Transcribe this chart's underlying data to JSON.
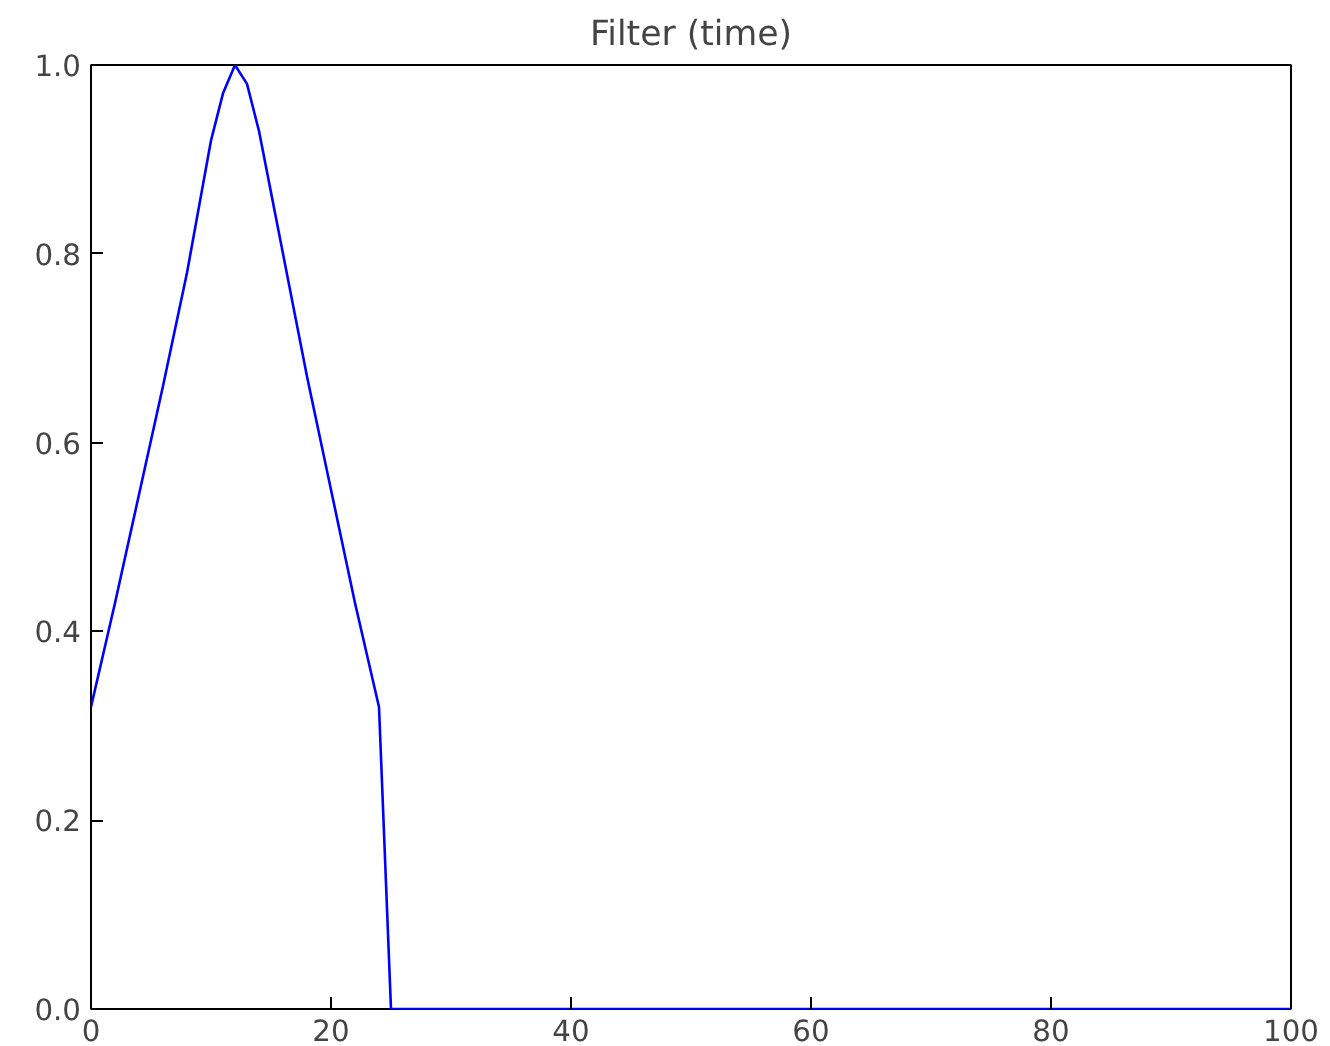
{
  "chart_data": {
    "type": "line",
    "title": "Filter (time)",
    "x": [
      0,
      2,
      4,
      6,
      8,
      10,
      11,
      12,
      13,
      14,
      16,
      18,
      20,
      22,
      24,
      25,
      100
    ],
    "series": [
      {
        "color": "#0000ff",
        "values": [
          0.32,
          0.43,
          0.545,
          0.66,
          0.78,
          0.92,
          0.97,
          1.0,
          0.98,
          0.93,
          0.8,
          0.67,
          0.55,
          0.43,
          0.32,
          0,
          0
        ]
      }
    ],
    "xlim": [
      0,
      100
    ],
    "ylim": [
      0,
      1
    ],
    "xticks": [
      0,
      20,
      40,
      60,
      80,
      100
    ],
    "yticks": [
      {
        "value": 0,
        "label": "0.0"
      },
      {
        "value": 0.2,
        "label": "0.2"
      },
      {
        "value": 0.4,
        "label": "0.4"
      },
      {
        "value": 0.6,
        "label": "0.6"
      },
      {
        "value": 0.8,
        "label": "0.8"
      },
      {
        "value": 1,
        "label": "1.0"
      }
    ],
    "marker": "none",
    "line_style": "solid"
  }
}
